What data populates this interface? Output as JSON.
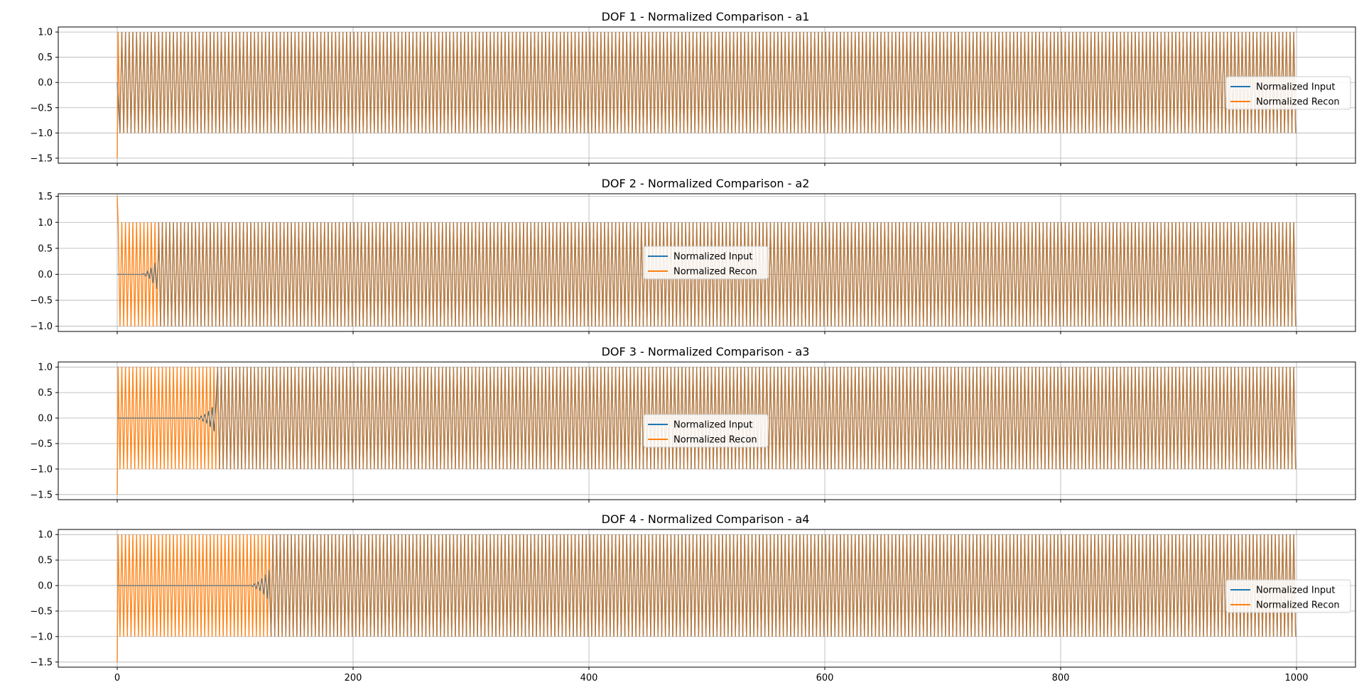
{
  "figure": {
    "panels": [
      {
        "title": "DOF 1 - Normalized Comparison - a1",
        "legend_position": "center-right"
      },
      {
        "title": "DOF 2 - Normalized Comparison - a2",
        "legend_position": "center"
      },
      {
        "title": "DOF 3 - Normalized Comparison - a3",
        "legend_position": "center"
      },
      {
        "title": "DOF 4 - Normalized Comparison - a4",
        "legend_position": "center-right"
      }
    ]
  },
  "colors": {
    "input": "#1f77b4",
    "recon": "#ff7f0e",
    "grid": "#b0b0b0",
    "axis": "#000000"
  },
  "chart_data": [
    {
      "type": "line",
      "title": "DOF 1 - Normalized Comparison - a1",
      "xlim": [
        -50,
        1050
      ],
      "ylim": [
        -1.6,
        1.1
      ],
      "x_ticks": [
        0,
        200,
        400,
        600,
        800,
        1000
      ],
      "y_ticks": [
        -1.5,
        -1.0,
        -0.5,
        0.0,
        0.5,
        1.0
      ],
      "x_tick_labels_visible": false,
      "grid": true,
      "legend_position": "center-right",
      "series": [
        {
          "name": "Normalized Input",
          "x_range": [
            0,
            1000
          ],
          "amplitude": 1.0,
          "oscillation_start": 2,
          "cycles": 320
        },
        {
          "name": "Normalized Recon",
          "x_range": [
            0,
            1000
          ],
          "amplitude": 1.0,
          "initial_value": -1.5,
          "oscillation_start": 0,
          "cycles": 320
        }
      ]
    },
    {
      "type": "line",
      "title": "DOF 2 - Normalized Comparison - a2",
      "xlim": [
        -50,
        1050
      ],
      "ylim": [
        -1.1,
        1.55
      ],
      "x_ticks": [
        0,
        200,
        400,
        600,
        800,
        1000
      ],
      "y_ticks": [
        -1.0,
        -0.5,
        0.0,
        0.5,
        1.0,
        1.5
      ],
      "x_tick_labels_visible": false,
      "grid": true,
      "legend_position": "center",
      "series": [
        {
          "name": "Normalized Input",
          "x_range": [
            0,
            1000
          ],
          "amplitude": 1.0,
          "oscillation_start": 35,
          "cycles": 320
        },
        {
          "name": "Normalized Recon",
          "x_range": [
            0,
            1000
          ],
          "amplitude": 1.0,
          "initial_value": 1.5,
          "oscillation_start": 0,
          "cycles": 320
        }
      ]
    },
    {
      "type": "line",
      "title": "DOF 3 - Normalized Comparison - a3",
      "xlim": [
        -50,
        1050
      ],
      "ylim": [
        -1.6,
        1.1
      ],
      "x_ticks": [
        0,
        200,
        400,
        600,
        800,
        1000
      ],
      "y_ticks": [
        -1.5,
        -1.0,
        -0.5,
        0.0,
        0.5,
        1.0
      ],
      "x_tick_labels_visible": false,
      "grid": true,
      "legend_position": "center",
      "series": [
        {
          "name": "Normalized Input",
          "x_range": [
            0,
            1000
          ],
          "amplitude": 1.0,
          "oscillation_start": 85,
          "cycles": 320
        },
        {
          "name": "Normalized Recon",
          "x_range": [
            0,
            1000
          ],
          "amplitude": 1.0,
          "initial_value": -1.5,
          "oscillation_start": 0,
          "cycles": 320
        }
      ]
    },
    {
      "type": "line",
      "title": "DOF 4 - Normalized Comparison - a4",
      "xlim": [
        -50,
        1050
      ],
      "ylim": [
        -1.6,
        1.1
      ],
      "x_ticks": [
        0,
        200,
        400,
        600,
        800,
        1000
      ],
      "y_ticks": [
        -1.5,
        -1.0,
        -0.5,
        0.0,
        0.5,
        1.0
      ],
      "x_tick_labels_visible": true,
      "grid": true,
      "legend_position": "center-right",
      "series": [
        {
          "name": "Normalized Input",
          "x_range": [
            0,
            1000
          ],
          "amplitude": 1.0,
          "oscillation_start": 130,
          "cycles": 320
        },
        {
          "name": "Normalized Recon",
          "x_range": [
            0,
            1000
          ],
          "amplitude": 1.0,
          "initial_value": -1.5,
          "oscillation_start": 0,
          "cycles": 320
        }
      ]
    }
  ]
}
